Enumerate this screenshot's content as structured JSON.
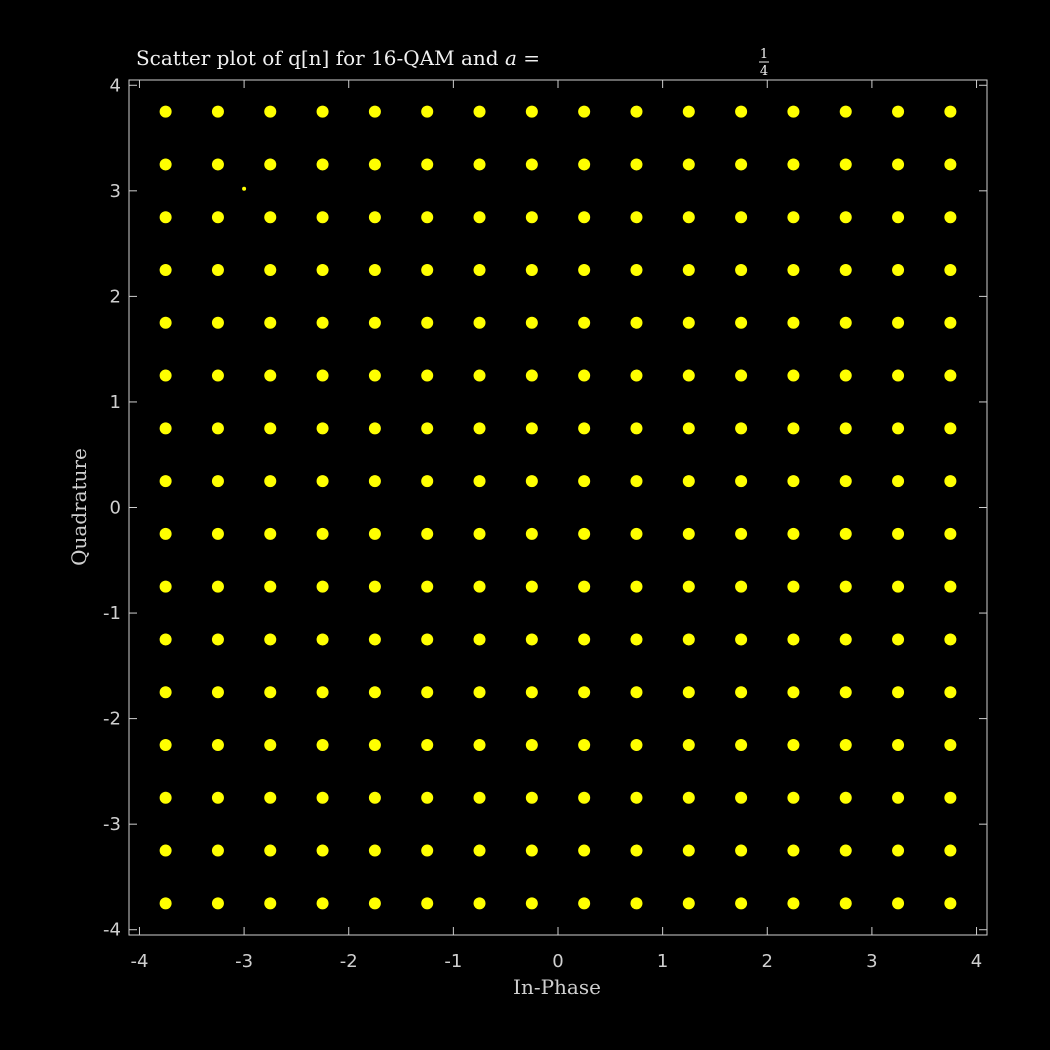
{
  "chart_data": {
    "type": "scatter",
    "title_text": "Scatter plot of q[n] for 16-QAM and ",
    "title_var": "a",
    "title_eq": " = ",
    "title_frac_num": "1",
    "title_frac_den": "4",
    "xlabel": "In-Phase",
    "ylabel": "Quadrature",
    "xlim": [
      -4.1,
      4.1
    ],
    "ylim": [
      -4.05,
      4.05
    ],
    "xticks": [
      -4,
      -3,
      -2,
      -1,
      0,
      1,
      2,
      3,
      4
    ],
    "yticks": [
      -4,
      -3,
      -2,
      -1,
      0,
      1,
      2,
      3,
      4
    ],
    "grid": false,
    "point_color": "#ffff00",
    "background_color": "#000000",
    "axes_color": "#cfcfcf",
    "constellation_levels": [
      -3.75,
      -3.25,
      -2.75,
      -2.25,
      -1.75,
      -1.25,
      -0.75,
      -0.25,
      0.25,
      0.75,
      1.25,
      1.75,
      2.25,
      2.75,
      3.25,
      3.75
    ],
    "outlier_points": [
      [
        -3.0,
        3.02
      ]
    ]
  }
}
